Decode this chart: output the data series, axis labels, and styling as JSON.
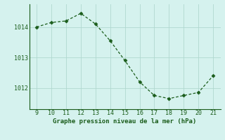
{
  "x": [
    9,
    10,
    11,
    12,
    13,
    14,
    15,
    16,
    17,
    18,
    19,
    20,
    21
  ],
  "y": [
    1014.0,
    1014.15,
    1014.2,
    1014.45,
    1014.1,
    1013.55,
    1012.9,
    1012.2,
    1011.75,
    1011.65,
    1011.75,
    1011.85,
    1012.4
  ],
  "line_color": "#1a5c1a",
  "marker": "D",
  "marker_size": 2.5,
  "bg_color": "#d5f2ee",
  "grid_color": "#b0d8d0",
  "grid_linewidth": 0.6,
  "xlabel": "Graphe pression niveau de la mer (hPa)",
  "xlabel_color": "#1a5c1a",
  "xlabel_fontsize": 6.5,
  "tick_color": "#1a5c1a",
  "tick_fontsize": 6,
  "yticks": [
    1012,
    1013,
    1014
  ],
  "xticks": [
    9,
    10,
    11,
    12,
    13,
    14,
    15,
    16,
    17,
    18,
    19,
    20,
    21
  ],
  "xlim": [
    8.5,
    21.5
  ],
  "ylim": [
    1011.3,
    1014.75
  ],
  "line_width": 0.9,
  "bottom_border_color": "#1a5c1a",
  "left_border_color": "#1a5c1a"
}
